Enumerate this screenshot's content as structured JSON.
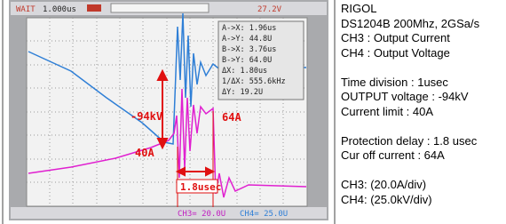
{
  "scope": {
    "status": {
      "mode": "WAIT",
      "timebase": "1.000us",
      "trigger_level": "27.2V"
    },
    "measurements": [
      "A->X: 1.96us",
      "A->Y: 44.8U",
      "B->X: 3.76us",
      "B->Y: 64.0U",
      "ΔX: 1.80us",
      "1/ΔX: 555.6kHz",
      "ΔY: 19.2U"
    ],
    "channels": [
      "CH3= 20.0U",
      "CH4= 25.0U"
    ],
    "annotations": {
      "voltage": "-94kV",
      "current_limit": "40A",
      "cutoff_current": "64A",
      "delay": "1.8usec"
    }
  },
  "notes": [
    [
      "RIGOL",
      "DS1204B 200Mhz, 2GSa/s",
      "CH3 : Output Current",
      "CH4 : Output Voltage"
    ],
    [
      "Time division : 1usec",
      "OUTPUT voltage : -94kV",
      "Current limit : 40A"
    ],
    [
      "Protection delay : 1.8 usec",
      "Cur off current : 64A"
    ],
    [
      "CH3: (20.0A/div)",
      "CH4: (25.0kV/div)"
    ]
  ]
}
